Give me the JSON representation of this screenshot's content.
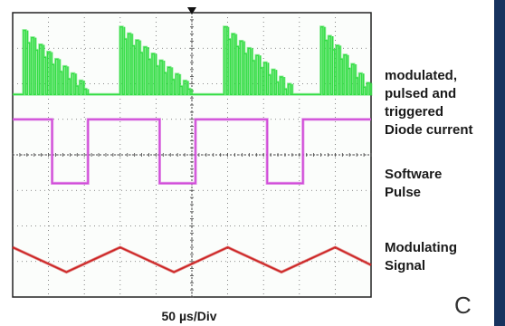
{
  "chart_data": {
    "type": "line",
    "title": "",
    "xlabel": "50 µs/Div",
    "ylabel": "",
    "x_unit": "div",
    "xlim": [
      0,
      10
    ],
    "ylim": [
      0,
      8
    ],
    "grid": true,
    "legend": "right",
    "series": [
      {
        "name": "modulated, pulsed and triggered Diode current",
        "name_lines": [
          "modulated,",
          "pulsed and",
          "triggered",
          "Diode current"
        ],
        "color": "#33dd44",
        "kind": "modulated-pulse-burst",
        "low": 5.7,
        "high_range": [
          6.5,
          7.7
        ],
        "x": [
          0,
          0.3,
          2.1,
          3.0,
          5.0,
          5.9,
          7.8,
          8.6,
          10
        ],
        "y": [
          6.2,
          7.5,
          5.7,
          7.6,
          5.7,
          7.6,
          5.7,
          7.6,
          5.7
        ]
      },
      {
        "name": "Software Pulse",
        "name_lines": [
          "Software",
          "Pulse"
        ],
        "color": "#d04ad8",
        "kind": "square",
        "high": 5.0,
        "low": 3.2,
        "x": [
          0,
          1.1,
          1.1,
          2.1,
          2.1,
          4.1,
          4.1,
          5.1,
          5.1,
          7.1,
          7.1,
          8.1,
          8.1,
          10
        ],
        "y": [
          5.0,
          5.0,
          3.2,
          3.2,
          5.0,
          5.0,
          3.2,
          3.2,
          5.0,
          5.0,
          3.2,
          3.2,
          5.0,
          5.0
        ]
      },
      {
        "name": "Modulating Signal",
        "name_lines": [
          "Modulating",
          "Signal"
        ],
        "color": "#cc2222",
        "kind": "triangle",
        "x": [
          0,
          1.5,
          3.0,
          4.5,
          6.0,
          7.5,
          9.0,
          10
        ],
        "y": [
          1.4,
          0.7,
          1.4,
          0.7,
          1.4,
          0.7,
          1.4,
          0.9
        ]
      }
    ]
  },
  "corner_label": "C"
}
